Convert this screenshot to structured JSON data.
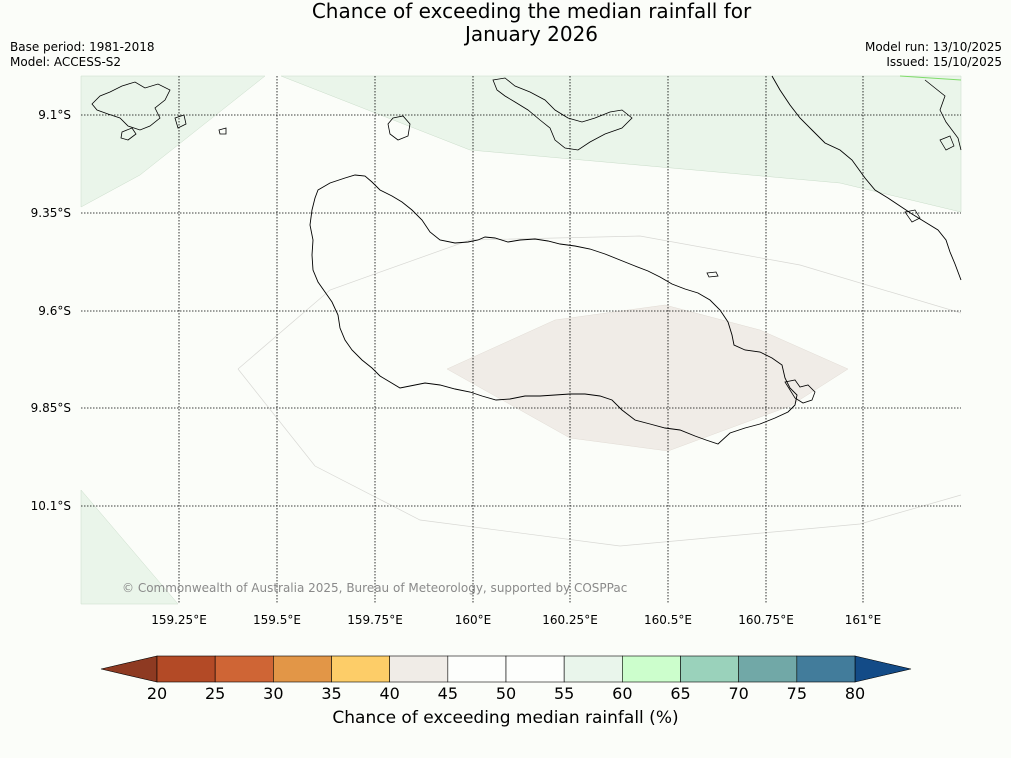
{
  "title_line1": "Chance of exceeding the median rainfall for",
  "title_line2": "January 2026",
  "base_period": "Base period: 1981-2018",
  "model": "Model: ACCESS-S2",
  "model_run": "Model run: 13/10/2025",
  "issued": "Issued: 15/10/2025",
  "copyright": "© Commonwealth of Australia 2025, Bureau of Meteorology, supported by COSPPac",
  "lat_labels": [
    "9.1°S",
    "9.35°S",
    "9.6°S",
    "9.85°S",
    "10.1°S"
  ],
  "lon_labels": [
    "159.25°E",
    "159.5°E",
    "159.75°E",
    "160°E",
    "160.25°E",
    "160.5°E",
    "160.75°E",
    "161°E"
  ],
  "colorbar": {
    "label": "Chance of exceeding median rainfall (%)",
    "ticks": [
      "20",
      "25",
      "30",
      "35",
      "40",
      "45",
      "50",
      "55",
      "60",
      "65",
      "70",
      "75",
      "80"
    ],
    "under_color": "#8e3a22",
    "over_color": "#134b87",
    "colors": [
      "#b34a26",
      "#cf6535",
      "#e29647",
      "#fdcd68",
      "#f0ece7",
      "#fdfefc",
      "#fdfefc",
      "#e9f5eb",
      "#ccfecc",
      "#9ad2bb",
      "#71a8a7",
      "#427c9b"
    ]
  },
  "map_colors": {
    "background": "#fbfdf9",
    "green_band": "#eaf5ea",
    "beige_zone": "#f0ece7"
  }
}
